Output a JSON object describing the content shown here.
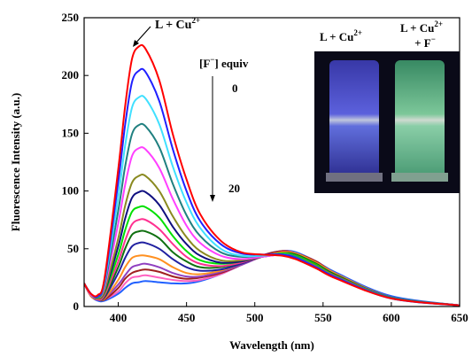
{
  "chart_data": {
    "type": "line",
    "x_label": "Wavelength (nm)",
    "y_label": "Fluorescence Intensity (a.u.)",
    "x": [
      375,
      380,
      385,
      390,
      400,
      405,
      410,
      415,
      420,
      430,
      440,
      450,
      460,
      475,
      490,
      505,
      520,
      530,
      545,
      560,
      600,
      650
    ],
    "series": [
      {
        "color": "#ff0000",
        "values": [
          20,
          11,
          10,
          25,
          119,
          173,
          214,
          225,
          223,
          196,
          149,
          110,
          80,
          57,
          47,
          45,
          44,
          41,
          33,
          24,
          7,
          1
        ]
      },
      {
        "color": "#2020ff",
        "values": [
          20,
          11,
          9,
          23,
          108,
          157,
          194,
          204,
          203,
          178,
          136,
          100,
          74,
          54,
          46,
          45,
          45,
          42,
          34,
          25,
          7,
          1
        ]
      },
      {
        "color": "#40e0ff",
        "values": [
          20,
          11,
          9,
          21,
          95,
          139,
          172,
          181,
          180,
          158,
          121,
          90,
          68,
          50,
          44,
          44,
          45,
          42,
          34,
          25,
          7,
          1
        ]
      },
      {
        "color": "#208080",
        "values": [
          20,
          11,
          8,
          19,
          83,
          121,
          149,
          157,
          156,
          138,
          106,
          79,
          61,
          47,
          43,
          44,
          45,
          43,
          34,
          25,
          8,
          1
        ]
      },
      {
        "color": "#ff40ff",
        "values": [
          20,
          10,
          8,
          17,
          72,
          105,
          130,
          137,
          136,
          120,
          93,
          70,
          55,
          44,
          41,
          43,
          45,
          43,
          34,
          25,
          8,
          1
        ]
      },
      {
        "color": "#8a8a20",
        "values": [
          20,
          10,
          7,
          14,
          59,
          87,
          107,
          113,
          113,
          100,
          78,
          60,
          48,
          40,
          40,
          43,
          45,
          43,
          35,
          26,
          8,
          1
        ]
      },
      {
        "color": "#101080",
        "values": [
          20,
          10,
          7,
          13,
          52,
          76,
          94,
          99,
          99,
          88,
          69,
          54,
          44,
          38,
          39,
          43,
          45,
          43,
          35,
          26,
          8,
          1
        ]
      },
      {
        "color": "#00e000",
        "values": [
          20,
          10,
          7,
          12,
          45,
          66,
          82,
          86,
          86,
          77,
          61,
          48,
          40,
          37,
          39,
          43,
          46,
          44,
          36,
          26,
          8,
          1
        ]
      },
      {
        "color": "#ff3090",
        "values": [
          20,
          10,
          6,
          10,
          39,
          57,
          71,
          75,
          75,
          67,
          54,
          43,
          37,
          35,
          38,
          43,
          46,
          44,
          36,
          26,
          8,
          1
        ]
      },
      {
        "color": "#107010",
        "values": [
          20,
          10,
          6,
          9,
          34,
          50,
          62,
          65,
          65,
          59,
          47,
          39,
          34,
          34,
          38,
          43,
          46,
          45,
          37,
          27,
          8,
          1
        ]
      },
      {
        "color": "#2020a0",
        "values": [
          20,
          10,
          6,
          8,
          29,
          42,
          52,
          55,
          55,
          50,
          41,
          34,
          31,
          32,
          37,
          43,
          46,
          45,
          37,
          27,
          8,
          1
        ]
      },
      {
        "color": "#ff9020",
        "values": [
          20,
          9,
          6,
          7,
          23,
          34,
          42,
          44,
          44,
          41,
          34,
          29,
          28,
          31,
          37,
          43,
          47,
          46,
          38,
          28,
          8,
          1
        ]
      },
      {
        "color": "#9040c0",
        "values": [
          20,
          9,
          6,
          7,
          19,
          27,
          34,
          36,
          37,
          34,
          29,
          26,
          26,
          30,
          36,
          43,
          47,
          45,
          38,
          28,
          8,
          1
        ]
      },
      {
        "color": "#a02020",
        "values": [
          20,
          9,
          6,
          6,
          16,
          24,
          29,
          31,
          32,
          30,
          26,
          24,
          25,
          29,
          36,
          44,
          48,
          46,
          39,
          28,
          8,
          1
        ]
      },
      {
        "color": "#ff60c0",
        "values": [
          20,
          9,
          6,
          6,
          13,
          20,
          25,
          26,
          27,
          25,
          23,
          22,
          23,
          28,
          36,
          43,
          48,
          46,
          39,
          28,
          8,
          1
        ]
      },
      {
        "color": "#2060ff",
        "values": [
          20,
          9,
          5,
          5,
          11,
          16,
          20,
          21,
          22,
          21,
          20,
          20,
          22,
          28,
          36,
          44,
          48,
          47,
          39,
          29,
          9,
          1
        ]
      }
    ],
    "xlim": [
      375,
      650
    ],
    "xticks": [
      400,
      450,
      500,
      550,
      600,
      650
    ],
    "ylim": [
      0,
      250
    ],
    "yticks": [
      0,
      50,
      100,
      150,
      200,
      250
    ],
    "annotations": {
      "curve_label": {
        "text": "L + Cu",
        "sup": "2+"
      },
      "equiv_label": {
        "text": "[F",
        "sup": "−",
        "tail": "] equiv"
      },
      "start_label": "0",
      "end_label": "20"
    },
    "inset": {
      "left_label": {
        "text": "L + Cu",
        "sup": "2+"
      },
      "right_label": {
        "text": "L + Cu",
        "sup": "2+",
        "line2": "+ F",
        "sup2": "−"
      }
    }
  }
}
